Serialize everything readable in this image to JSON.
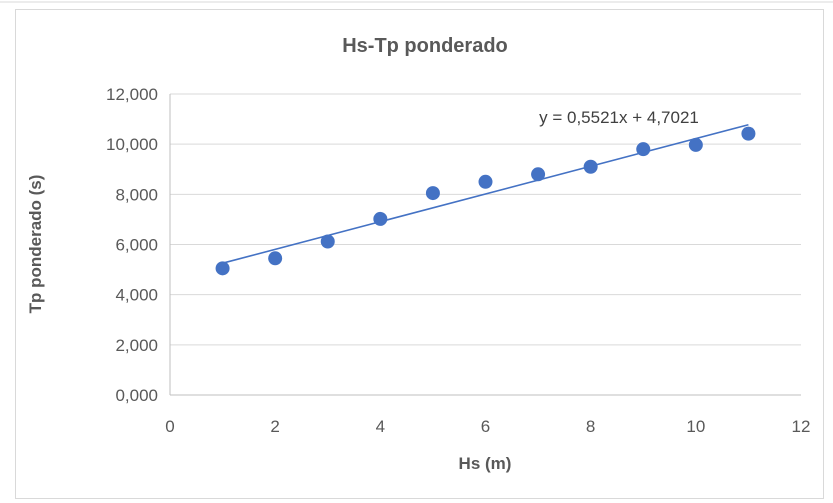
{
  "chart_data": {
    "type": "scatter",
    "title": "Hs-Tp ponderado",
    "xlabel": "Hs (m)",
    "ylabel": "Tp ponderado (s)",
    "xlim": [
      0,
      12
    ],
    "ylim": [
      0,
      12
    ],
    "x_ticks": [
      "0",
      "2",
      "4",
      "6",
      "8",
      "10",
      "12"
    ],
    "y_ticks": [
      "0,000",
      "2,000",
      "4,000",
      "6,000",
      "8,000",
      "10,000",
      "12,000"
    ],
    "grid": "horizontal",
    "marker_color": "#4472C4",
    "series": [
      {
        "x": [
          1,
          2,
          3,
          4,
          5,
          6,
          7,
          8,
          9,
          10,
          11
        ],
        "y": [
          5.05,
          5.45,
          6.12,
          7.02,
          8.05,
          8.5,
          8.8,
          9.1,
          9.8,
          9.97,
          10.42
        ]
      }
    ],
    "trendline": {
      "type": "linear",
      "slope": 0.5521,
      "intercept": 4.7021,
      "x_range": [
        1,
        11
      ],
      "equation_label": "y = 0,5521x + 4,7021",
      "color": "#4472C4"
    }
  }
}
